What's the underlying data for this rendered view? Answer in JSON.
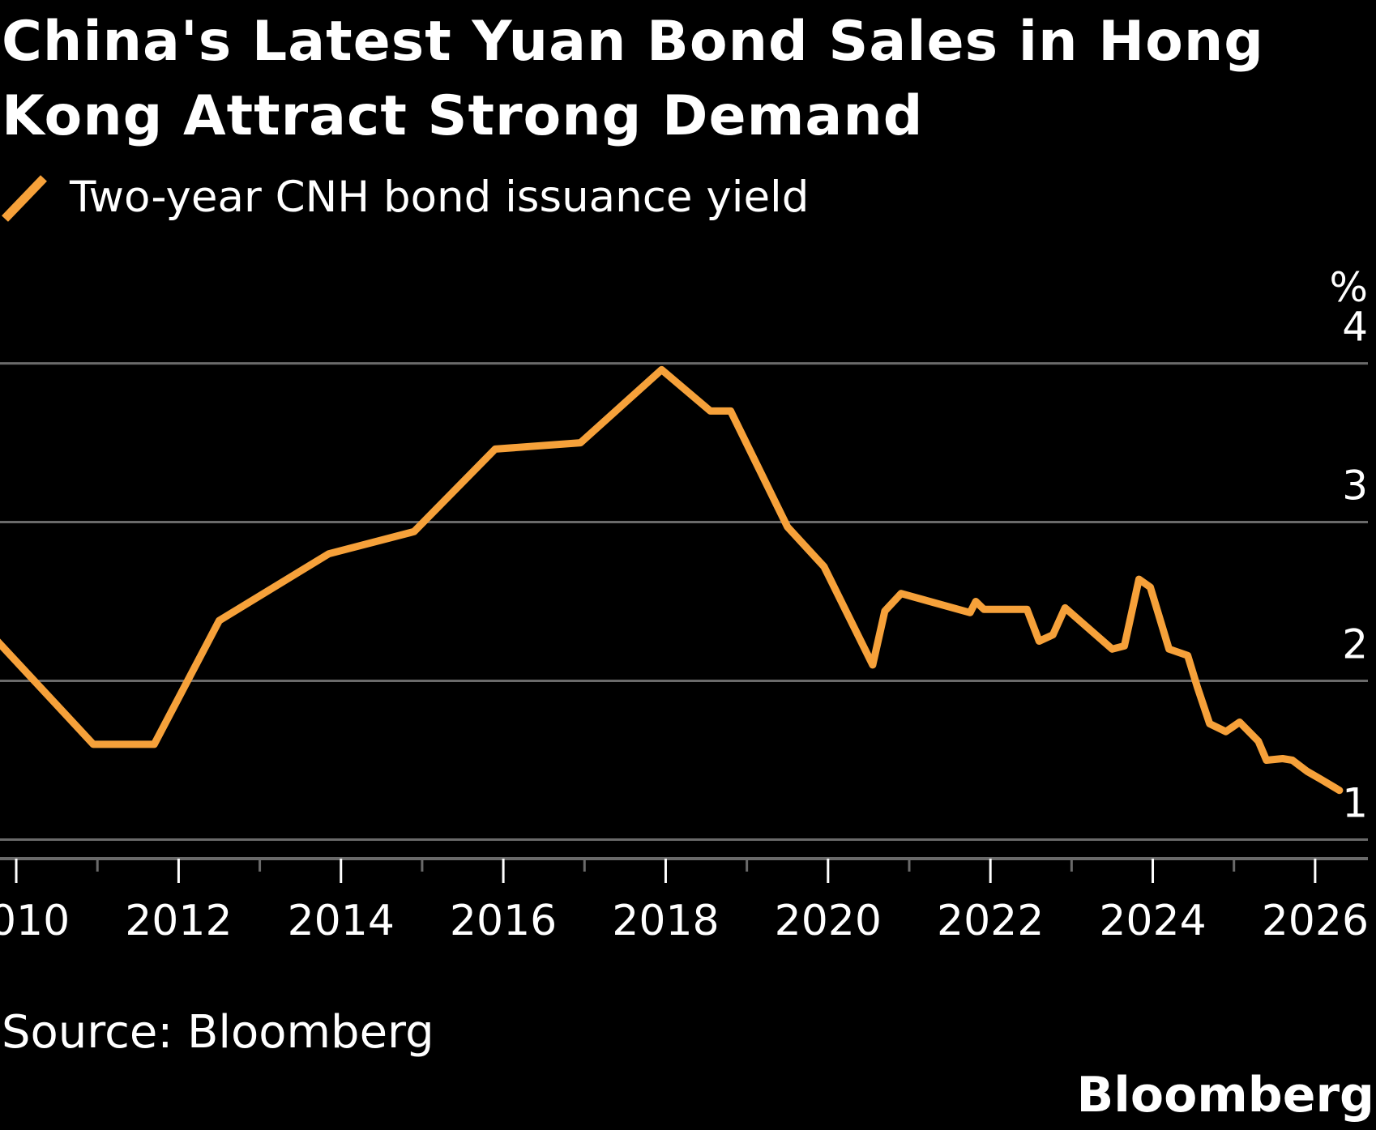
{
  "title": "China's Latest Yuan Bond Sales in Hong Kong Attract Strong Demand",
  "legend": [
    {
      "label": "Two-year CNH bond issuance yield",
      "color": "#f6a13a",
      "icon": "diagonal-line-swatch"
    }
  ],
  "source": "Source: Bloomberg",
  "brand": "Bloomberg",
  "colors": {
    "background": "#000000",
    "text": "#ffffff",
    "grid": "#6a6a6a",
    "series": "#f6a13a"
  },
  "chart_data": {
    "type": "line",
    "title": "China's Latest Yuan Bond Sales in Hong Kong Attract Strong Demand",
    "xlabel": "",
    "ylabel": "%",
    "xlim": [
      2009.8,
      2026.65
    ],
    "ylim": [
      0.88,
      4.35
    ],
    "yticks": [
      1,
      2,
      3,
      4
    ],
    "ytick_labels": [
      "1",
      "2",
      "3",
      "4"
    ],
    "xticks": [
      2010,
      2012,
      2014,
      2016,
      2018,
      2020,
      2022,
      2024,
      2026
    ],
    "xtick_labels": [
      "2010",
      "2012",
      "2014",
      "2016",
      "2018",
      "2020",
      "2022",
      "2024",
      "2026"
    ],
    "minor_xticks": [
      2011,
      2013,
      2015,
      2017,
      2019,
      2021,
      2023,
      2025
    ],
    "grid": true,
    "legend_position": "top-left",
    "series": [
      {
        "name": "Two-year CNH bond issuance yield",
        "color": "#f6a13a",
        "x": [
          2009.75,
          2010.95,
          2011.7,
          2012.5,
          2013.85,
          2014.9,
          2015.9,
          2016.95,
          2017.95,
          2018.55,
          2018.8,
          2019.5,
          2019.95,
          2020.55,
          2020.7,
          2020.9,
          2021.75,
          2021.82,
          2021.92,
          2022.45,
          2022.6,
          2022.77,
          2022.92,
          2023.5,
          2023.65,
          2023.83,
          2023.97,
          2024.2,
          2024.43,
          2024.55,
          2024.7,
          2024.9,
          2025.07,
          2025.3,
          2025.4,
          2025.6,
          2025.72,
          2025.9,
          2026.07,
          2026.3
        ],
        "y": [
          2.26,
          1.6,
          1.6,
          2.38,
          2.8,
          2.94,
          3.46,
          3.5,
          3.96,
          3.7,
          3.7,
          2.97,
          2.72,
          2.1,
          2.44,
          2.55,
          2.43,
          2.5,
          2.45,
          2.45,
          2.25,
          2.29,
          2.46,
          2.2,
          2.22,
          2.64,
          2.59,
          2.2,
          2.16,
          1.96,
          1.73,
          1.68,
          1.74,
          1.62,
          1.5,
          1.51,
          1.5,
          1.43,
          1.38,
          1.31
        ]
      }
    ]
  }
}
